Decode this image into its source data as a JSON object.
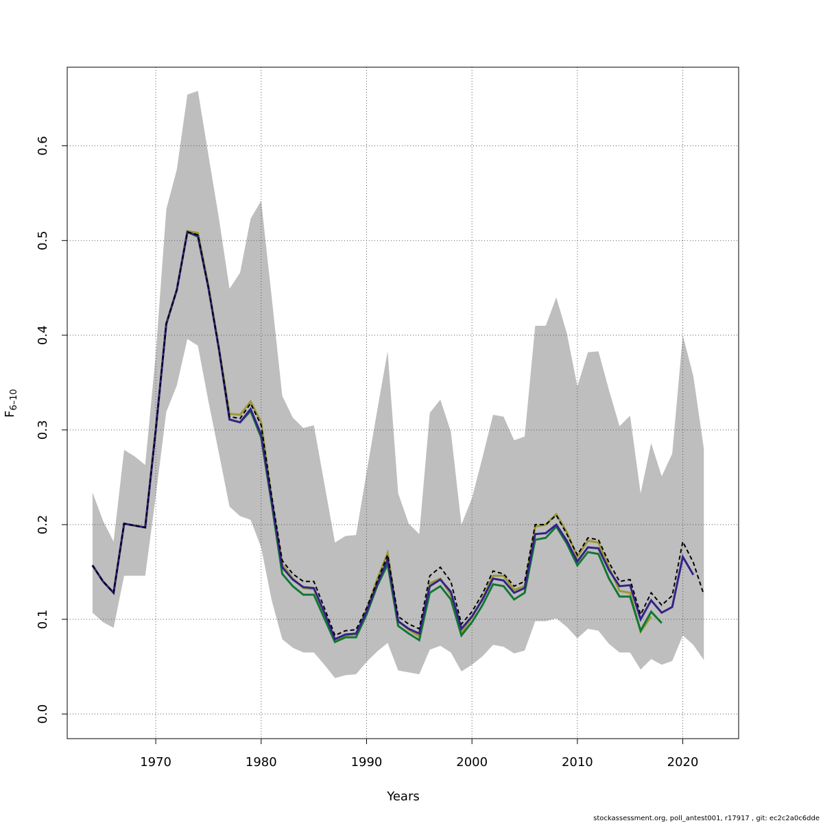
{
  "chart_data": {
    "type": "line",
    "xlabel": "Years",
    "ylabel": "F",
    "ylabel_sub": "6–10",
    "footer": "stockassessment.org, poll_antest001, r17917 , git: ec2c2a0c6dde",
    "grid": true,
    "xlim": [
      1961.6,
      2025.3
    ],
    "ylim": [
      -0.026,
      0.683
    ],
    "xticks": [
      1970,
      1980,
      1990,
      2000,
      2010,
      2020
    ],
    "yticks": [
      {
        "value": 0,
        "label": "0.0"
      },
      0.1,
      0.2,
      0.3,
      0.4,
      0.5,
      0.6
    ],
    "x": [
      1964,
      1965,
      1966,
      1967,
      1968,
      1969,
      1970,
      1971,
      1972,
      1973,
      1974,
      1975,
      1976,
      1977,
      1978,
      1979,
      1980,
      1981,
      1982,
      1983,
      1984,
      1985,
      1986,
      1987,
      1988,
      1989,
      1990,
      1991,
      1992,
      1993,
      1994,
      1995,
      1996,
      1997,
      1998,
      1999,
      2000,
      2001,
      2002,
      2003,
      2004,
      2005,
      2006,
      2007,
      2008,
      2009,
      2010,
      2011,
      2012,
      2013,
      2014,
      2015,
      2016,
      2017,
      2018,
      2019,
      2020,
      2021,
      2022
    ],
    "band": {
      "color": "#bebebe",
      "upper": [
        0.234,
        0.204,
        0.182,
        0.279,
        0.272,
        0.263,
        0.38,
        0.533,
        0.575,
        0.654,
        0.658,
        0.59,
        0.523,
        0.449,
        0.466,
        0.523,
        0.542,
        0.44,
        0.336,
        0.313,
        0.302,
        0.305,
        0.243,
        0.181,
        0.188,
        0.189,
        0.255,
        0.32,
        0.383,
        0.233,
        0.201,
        0.19,
        0.318,
        0.332,
        0.298,
        0.2,
        0.228,
        0.271,
        0.316,
        0.314,
        0.289,
        0.293,
        0.41,
        0.41,
        0.44,
        0.402,
        0.346,
        0.382,
        0.383,
        0.342,
        0.304,
        0.315,
        0.233,
        0.286,
        0.251,
        0.275,
        0.4,
        0.357,
        0.28
      ],
      "lower": [
        0.107,
        0.097,
        0.091,
        0.146,
        0.146,
        0.146,
        0.23,
        0.319,
        0.347,
        0.396,
        0.389,
        0.33,
        0.275,
        0.219,
        0.209,
        0.205,
        0.176,
        0.12,
        0.079,
        0.07,
        0.065,
        0.065,
        0.052,
        0.038,
        0.041,
        0.042,
        0.055,
        0.066,
        0.075,
        0.046,
        0.044,
        0.042,
        0.068,
        0.072,
        0.065,
        0.045,
        0.052,
        0.061,
        0.073,
        0.071,
        0.064,
        0.067,
        0.098,
        0.098,
        0.101,
        0.092,
        0.08,
        0.09,
        0.088,
        0.074,
        0.065,
        0.065,
        0.047,
        0.058,
        0.052,
        0.056,
        0.083,
        0.073,
        0.057
      ]
    },
    "series": [
      {
        "color": "#999933",
        "values": [
          0.157,
          0.14,
          0.128,
          0.201,
          0.199,
          0.197,
          0.3,
          0.412,
          0.448,
          0.51,
          0.508,
          0.452,
          0.386,
          0.317,
          0.316,
          0.33,
          0.308,
          0.228,
          0.158,
          0.143,
          0.133,
          0.132,
          0.106,
          0.078,
          0.083,
          0.084,
          0.11,
          0.142,
          0.17,
          0.098,
          0.089,
          0.082,
          0.138,
          0.143,
          0.126,
          0.086,
          0.102,
          0.122,
          0.146,
          0.146,
          0.131,
          0.135,
          0.198,
          0.2,
          0.211,
          0.192,
          0.166,
          0.183,
          0.181,
          0.155,
          0.13,
          0.128,
          0.087,
          0.103,
          null,
          null,
          null,
          null,
          null
        ]
      },
      {
        "color": "#117733",
        "values": [
          0.157,
          0.14,
          0.128,
          0.201,
          0.199,
          0.197,
          0.3,
          0.412,
          0.448,
          0.509,
          0.504,
          0.45,
          0.385,
          0.311,
          0.308,
          0.32,
          0.292,
          0.222,
          0.148,
          0.135,
          0.126,
          0.126,
          0.101,
          0.076,
          0.081,
          0.081,
          0.105,
          0.135,
          0.158,
          0.093,
          0.085,
          0.078,
          0.128,
          0.135,
          0.121,
          0.083,
          0.097,
          0.115,
          0.137,
          0.135,
          0.121,
          0.128,
          0.184,
          0.186,
          0.198,
          0.18,
          0.157,
          0.171,
          0.169,
          0.143,
          0.124,
          0.124,
          0.088,
          0.108,
          0.096,
          null,
          null,
          null,
          null
        ]
      },
      {
        "color": "#332288",
        "values": [
          0.157,
          0.14,
          0.128,
          0.201,
          0.199,
          0.197,
          0.3,
          0.412,
          0.448,
          0.509,
          0.505,
          0.45,
          0.385,
          0.311,
          0.308,
          0.322,
          0.295,
          0.225,
          0.155,
          0.142,
          0.134,
          0.133,
          0.107,
          0.079,
          0.084,
          0.085,
          0.108,
          0.137,
          0.163,
          0.098,
          0.09,
          0.085,
          0.135,
          0.142,
          0.129,
          0.09,
          0.103,
          0.121,
          0.143,
          0.141,
          0.128,
          0.133,
          0.19,
          0.191,
          0.2,
          0.183,
          0.161,
          0.176,
          0.175,
          0.152,
          0.135,
          0.136,
          0.1,
          0.12,
          0.107,
          0.113,
          0.166,
          0.147,
          null
        ]
      },
      {
        "color": "#000000",
        "dashed": true,
        "values": [
          0.157,
          0.14,
          0.128,
          0.201,
          0.199,
          0.197,
          0.3,
          0.412,
          0.448,
          0.509,
          0.506,
          0.45,
          0.385,
          0.314,
          0.312,
          0.328,
          0.305,
          0.23,
          0.162,
          0.148,
          0.14,
          0.14,
          0.112,
          0.083,
          0.088,
          0.089,
          0.112,
          0.14,
          0.168,
          0.103,
          0.095,
          0.09,
          0.146,
          0.155,
          0.14,
          0.095,
          0.108,
          0.127,
          0.151,
          0.148,
          0.135,
          0.14,
          0.2,
          0.2,
          0.21,
          0.19,
          0.168,
          0.186,
          0.184,
          0.16,
          0.14,
          0.142,
          0.105,
          0.128,
          0.115,
          0.125,
          0.182,
          0.16,
          0.126
        ]
      }
    ]
  }
}
